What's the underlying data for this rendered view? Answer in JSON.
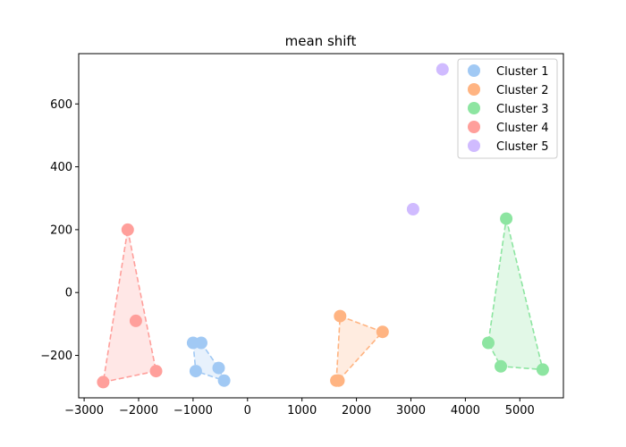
{
  "chart_data": {
    "type": "scatter",
    "title": "mean shift",
    "xlabel": "",
    "ylabel": "",
    "xlim": [
      -3100,
      5800
    ],
    "ylim": [
      -335,
      760
    ],
    "xticks": [
      -3000,
      -2000,
      -1000,
      0,
      1000,
      2000,
      3000,
      4000,
      5000
    ],
    "xtick_labels": [
      "−3000",
      "−2000",
      "−1000",
      "0",
      "1000",
      "2000",
      "3000",
      "4000",
      "5000"
    ],
    "yticks": [
      -200,
      0,
      200,
      400,
      600
    ],
    "ytick_labels": [
      "−200",
      "0",
      "200",
      "400",
      "600"
    ],
    "grid": false,
    "legend_position": "top-right",
    "series": [
      {
        "name": "Cluster 1",
        "color": "#a1c9f4",
        "points": [
          [
            -1000,
            -160
          ],
          [
            -850,
            -160
          ],
          [
            -950,
            -250
          ],
          [
            -530,
            -240
          ],
          [
            -430,
            -280
          ]
        ],
        "hull": [
          [
            -1000,
            -160
          ],
          [
            -850,
            -160
          ],
          [
            -530,
            -240
          ],
          [
            -430,
            -280
          ],
          [
            -950,
            -250
          ]
        ]
      },
      {
        "name": "Cluster 2",
        "color": "#ffb482",
        "points": [
          [
            1700,
            -75
          ],
          [
            2480,
            -125
          ],
          [
            1630,
            -280
          ],
          [
            1670,
            -280
          ]
        ],
        "hull": [
          [
            1700,
            -75
          ],
          [
            2480,
            -125
          ],
          [
            1670,
            -280
          ],
          [
            1630,
            -280
          ]
        ]
      },
      {
        "name": "Cluster 3",
        "color": "#8de5a1",
        "points": [
          [
            4750,
            235
          ],
          [
            4420,
            -160
          ],
          [
            4650,
            -235
          ],
          [
            5420,
            -245
          ]
        ],
        "hull": [
          [
            4750,
            235
          ],
          [
            5420,
            -245
          ],
          [
            4650,
            -235
          ],
          [
            4420,
            -160
          ]
        ]
      },
      {
        "name": "Cluster 4",
        "color": "#ff9f9b",
        "points": [
          [
            -2200,
            200
          ],
          [
            -2050,
            -90
          ],
          [
            -1680,
            -250
          ],
          [
            -2650,
            -285
          ]
        ],
        "hull": [
          [
            -2200,
            200
          ],
          [
            -1680,
            -250
          ],
          [
            -2650,
            -285
          ]
        ]
      },
      {
        "name": "Cluster 5",
        "color": "#d0bbff",
        "points": [
          [
            3580,
            710
          ],
          [
            3040,
            265
          ]
        ],
        "hull": []
      }
    ]
  }
}
